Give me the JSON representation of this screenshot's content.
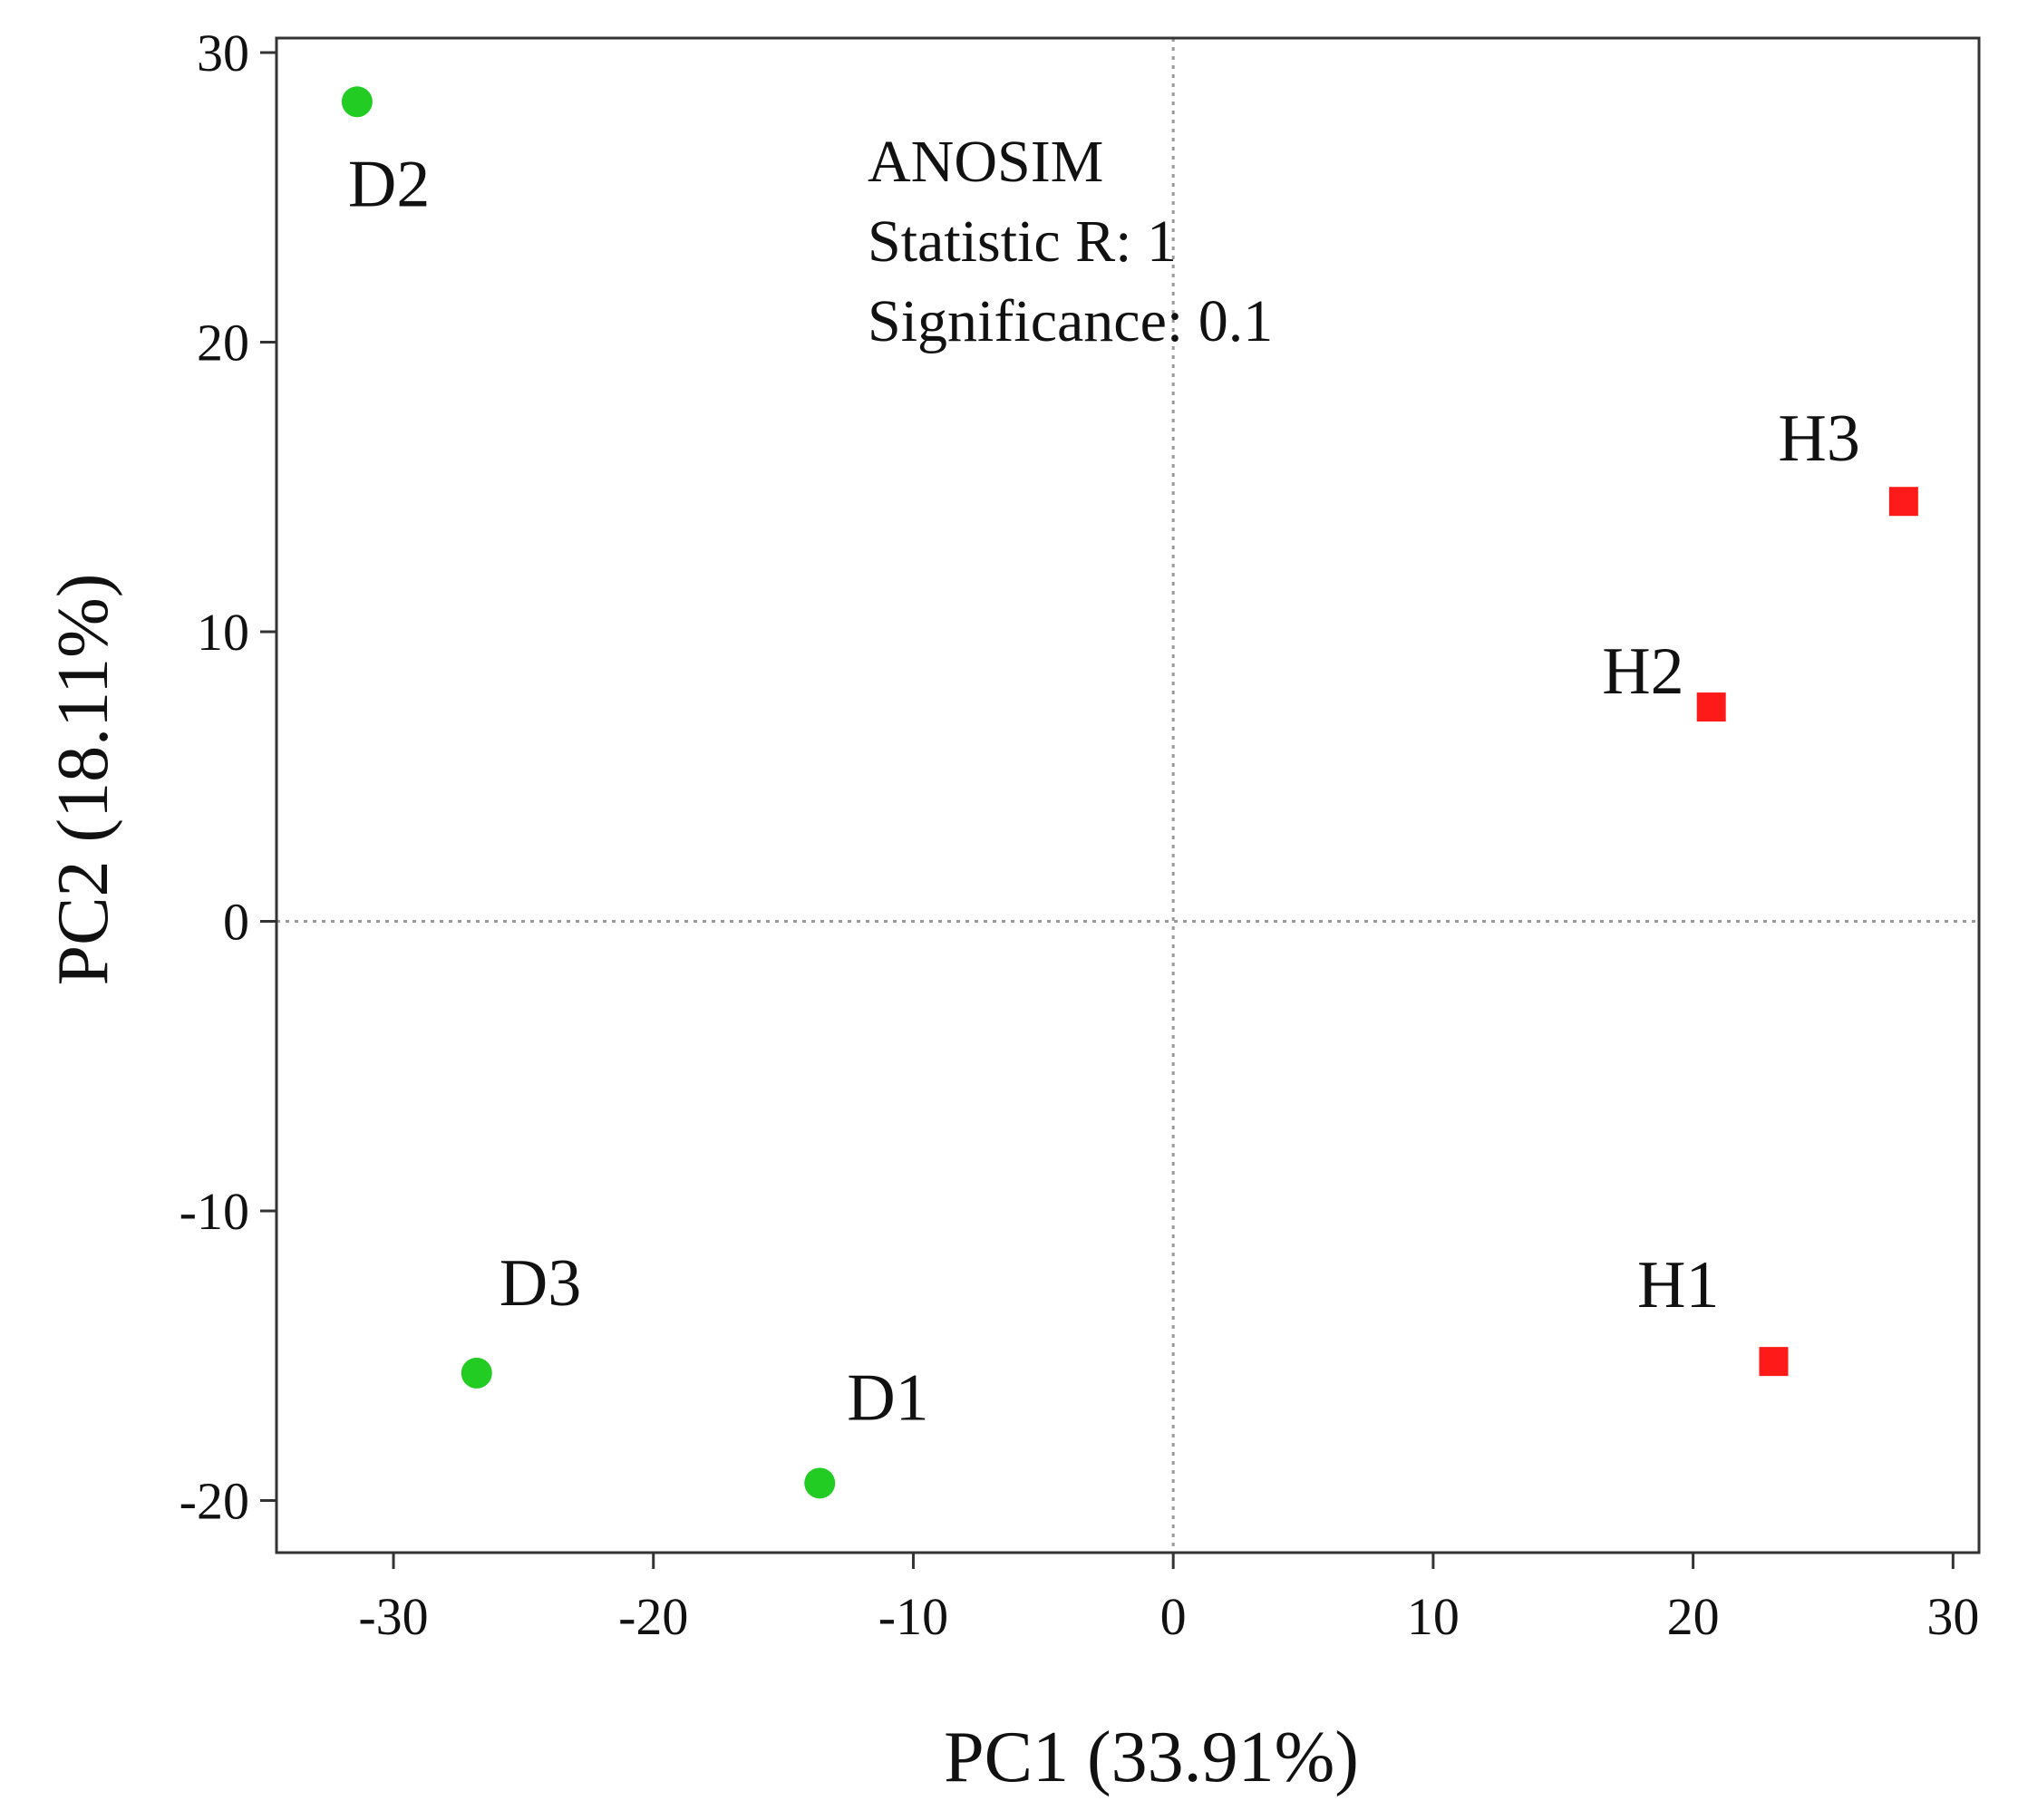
{
  "chart_data": {
    "type": "scatter",
    "title": "",
    "xlabel": "PC1  (33.91%)",
    "ylabel": "PC2  (18.11%)",
    "xlim": [
      -34.5,
      31
    ],
    "ylim": [
      -21.8,
      30.5
    ],
    "xticks": [
      -30,
      -20,
      -10,
      0,
      10,
      20,
      30
    ],
    "yticks": [
      -20,
      -10,
      0,
      10,
      20,
      30
    ],
    "grid": false,
    "zero_lines": true,
    "series": [
      {
        "name": "D",
        "marker": "circle",
        "color": "#22cc22",
        "points": [
          {
            "label": "D1",
            "x": -13.6,
            "y": -19.4
          },
          {
            "label": "D2",
            "x": -31.4,
            "y": 28.3
          },
          {
            "label": "D3",
            "x": -26.8,
            "y": -15.6
          }
        ]
      },
      {
        "name": "H",
        "marker": "square",
        "color": "#ff1a1a",
        "points": [
          {
            "label": "H1",
            "x": 23.1,
            "y": -15.2
          },
          {
            "label": "H2",
            "x": 20.7,
            "y": 7.4
          },
          {
            "label": "H3",
            "x": 28.1,
            "y": 14.5
          }
        ]
      }
    ],
    "annotation": [
      "ANOSIM",
      "Statistic R: 1",
      "Significance: 0.1"
    ]
  }
}
